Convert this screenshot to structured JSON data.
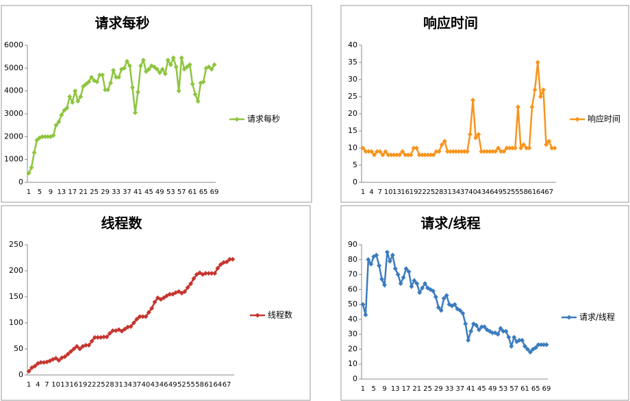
{
  "chart_data": [
    {
      "type": "line",
      "title": "请求每秒",
      "legend": "right",
      "grid": false,
      "categories": [
        1,
        null,
        null,
        null,
        5,
        null,
        null,
        null,
        9,
        null,
        null,
        null,
        13,
        null,
        null,
        null,
        17,
        null,
        null,
        null,
        21,
        null,
        null,
        null,
        25,
        null,
        null,
        null,
        29,
        null,
        null,
        null,
        33,
        null,
        null,
        null,
        37,
        null,
        null,
        null,
        41,
        null,
        null,
        null,
        45,
        null,
        null,
        null,
        49,
        null,
        null,
        null,
        53,
        null,
        null,
        null,
        57,
        null,
        null,
        null,
        61,
        null,
        null,
        null,
        65,
        null,
        null,
        null,
        69
      ],
      "ylim": [
        0,
        6000
      ],
      "yticks": [
        0,
        1000,
        2000,
        3000,
        4000,
        5000,
        6000
      ],
      "series": [
        {
          "name": "请求每秒",
          "color": "#8dc53e",
          "values": [
            400,
            650,
            1300,
            1850,
            1950,
            2000,
            2000,
            2000,
            2000,
            2050,
            2500,
            2650,
            2950,
            3150,
            3250,
            3750,
            3500,
            4000,
            3550,
            3750,
            4200,
            4300,
            4400,
            4600,
            4450,
            4400,
            4700,
            4700,
            4050,
            4050,
            4350,
            4900,
            4600,
            4600,
            4950,
            5000,
            5300,
            5100,
            4150,
            3050,
            3950,
            5100,
            5350,
            4850,
            4950,
            5100,
            5050,
            4950,
            4800,
            4950,
            4750,
            5350,
            5150,
            5450,
            5050,
            4000,
            5450,
            4950,
            5050,
            5150,
            4300,
            3850,
            3550,
            4350,
            4400,
            5000,
            5050,
            4950,
            5150
          ]
        }
      ]
    },
    {
      "type": "line",
      "title": "响应时间",
      "legend": "right",
      "grid": false,
      "categories": [
        1,
        null,
        null,
        4,
        null,
        null,
        7,
        null,
        null,
        10,
        null,
        null,
        13,
        null,
        null,
        16,
        null,
        null,
        19,
        null,
        null,
        22,
        null,
        null,
        25,
        null,
        null,
        28,
        null,
        null,
        31,
        null,
        null,
        34,
        null,
        null,
        37,
        null,
        null,
        40,
        null,
        null,
        43,
        null,
        null,
        46,
        null,
        null,
        49,
        null,
        null,
        52,
        null,
        null,
        55,
        null,
        null,
        58,
        null,
        null,
        61,
        null,
        null,
        64,
        null,
        null,
        67,
        null,
        null
      ],
      "ylim": [
        0,
        40
      ],
      "yticks": [
        0,
        5,
        10,
        15,
        20,
        25,
        30,
        35,
        40
      ],
      "series": [
        {
          "name": "响应时间",
          "color": "#f7941d",
          "values": [
            10,
            9,
            9,
            9,
            8,
            9,
            9,
            8,
            9,
            8,
            8,
            8,
            8,
            8,
            9,
            8,
            8,
            8,
            10,
            10,
            8,
            8,
            8,
            8,
            8,
            8,
            9,
            9,
            11,
            12,
            9,
            9,
            9,
            9,
            9,
            9,
            9,
            9,
            14,
            24,
            13,
            14,
            9,
            9,
            9,
            9,
            9,
            9,
            10,
            9,
            9,
            10,
            10,
            10,
            10,
            22,
            10,
            11,
            10,
            10,
            22,
            27,
            35,
            25,
            27,
            11,
            12,
            10,
            10
          ]
        }
      ]
    },
    {
      "type": "line",
      "title": "线程数",
      "legend": "right",
      "grid": false,
      "categories": [
        1,
        null,
        null,
        4,
        null,
        null,
        7,
        null,
        null,
        10,
        null,
        null,
        13,
        null,
        null,
        16,
        null,
        null,
        19,
        null,
        null,
        22,
        null,
        null,
        25,
        null,
        null,
        28,
        null,
        null,
        31,
        null,
        null,
        34,
        null,
        null,
        37,
        null,
        null,
        40,
        null,
        null,
        43,
        null,
        null,
        46,
        null,
        null,
        49,
        null,
        null,
        52,
        null,
        null,
        55,
        null,
        null,
        58,
        null,
        null,
        61,
        null,
        null,
        64,
        null,
        null,
        67,
        null,
        null
      ],
      "ylim": [
        0,
        250
      ],
      "yticks": [
        0,
        50,
        100,
        150,
        200,
        250
      ],
      "series": [
        {
          "name": "线程数",
          "color": "#c6352f",
          "values": [
            7,
            14,
            17,
            22,
            24,
            24,
            25,
            27,
            30,
            32,
            28,
            33,
            35,
            40,
            45,
            50,
            55,
            50,
            55,
            57,
            57,
            65,
            72,
            72,
            72,
            73,
            73,
            80,
            85,
            85,
            87,
            84,
            88,
            92,
            93,
            100,
            107,
            112,
            112,
            112,
            120,
            128,
            140,
            148,
            145,
            148,
            152,
            155,
            155,
            158,
            160,
            157,
            160,
            168,
            175,
            185,
            193,
            196,
            193,
            195,
            195,
            195,
            195,
            205,
            212,
            216,
            217,
            222,
            222
          ]
        }
      ]
    },
    {
      "type": "line",
      "title": "请求/线程",
      "legend": "right",
      "grid": false,
      "categories": [
        1,
        null,
        null,
        null,
        5,
        null,
        null,
        null,
        9,
        null,
        null,
        null,
        13,
        null,
        null,
        null,
        17,
        null,
        null,
        null,
        21,
        null,
        null,
        null,
        25,
        null,
        null,
        null,
        29,
        null,
        null,
        null,
        33,
        null,
        null,
        null,
        37,
        null,
        null,
        null,
        41,
        null,
        null,
        null,
        45,
        null,
        null,
        null,
        49,
        null,
        null,
        null,
        53,
        null,
        null,
        null,
        57,
        null,
        null,
        null,
        61,
        null,
        null,
        null,
        65,
        null,
        null,
        null,
        69
      ],
      "ylim": [
        0,
        90
      ],
      "yticks": [
        0,
        10,
        20,
        30,
        40,
        50,
        60,
        70,
        80,
        90
      ],
      "series": [
        {
          "name": "请求/线程",
          "color": "#3b7bbf",
          "values": [
            50,
            43,
            80,
            77,
            82,
            83,
            76,
            67,
            63,
            85,
            79,
            83,
            74,
            70,
            64,
            68,
            74,
            72,
            62,
            66,
            64,
            58,
            61,
            64,
            61,
            60,
            59,
            55,
            48,
            46,
            54,
            56,
            50,
            49,
            50,
            47,
            46,
            44,
            37,
            26,
            32,
            37,
            36,
            33,
            35,
            35,
            33,
            32,
            31,
            31,
            30,
            34,
            32,
            32,
            28,
            22,
            28,
            25,
            26,
            26,
            22,
            20,
            18,
            20,
            21,
            23,
            23,
            23,
            23
          ]
        }
      ]
    }
  ]
}
